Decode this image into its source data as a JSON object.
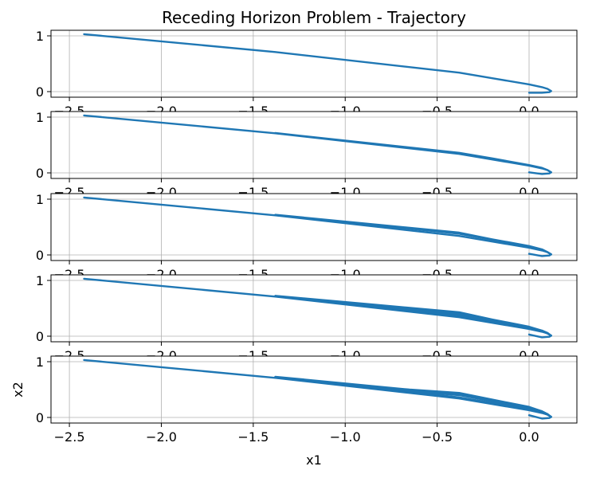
{
  "figure": {
    "title": "Receding Horizon Problem - Trajectory"
  },
  "chart_data": {
    "type": "line",
    "title": "Receding Horizon Problem - Trajectory",
    "xlabel": "x1",
    "ylabel": "x2",
    "xlim": [
      -2.6,
      0.26
    ],
    "ylim": [
      -0.1,
      1.1
    ],
    "xticks": [
      -2.5,
      -2.0,
      -1.5,
      -1.0,
      -0.5,
      0.0
    ],
    "xtick_labels": [
      "−2.5",
      "−2.0",
      "−1.5",
      "−1.0",
      "−0.5",
      "0.0"
    ],
    "yticks": [
      0,
      1
    ],
    "ytick_labels": [
      "0",
      "1"
    ],
    "grid": true,
    "line_color": "#1f77b4",
    "subplots": [
      {
        "series": [
          {
            "x": [
              -2.42,
              -1.38,
              -0.38,
              -0.2,
              0.0,
              0.07,
              0.1,
              0.12,
              0.11,
              0.07,
              0.0
            ],
            "y": [
              1.03,
              0.71,
              0.34,
              0.24,
              0.13,
              0.08,
              0.05,
              0.01,
              -0.01,
              -0.02,
              -0.02
            ]
          }
        ]
      },
      {
        "series": [
          {
            "x": [
              -2.42,
              -1.38,
              -0.38,
              -0.2,
              0.0,
              0.07,
              0.1,
              0.12,
              0.11,
              0.07,
              0.0
            ],
            "y": [
              1.03,
              0.71,
              0.34,
              0.24,
              0.13,
              0.08,
              0.05,
              0.01,
              -0.01,
              -0.02,
              0.01
            ]
          },
          {
            "x": [
              -1.38,
              -0.38,
              -0.2,
              0.0,
              0.07,
              0.1,
              0.12
            ],
            "y": [
              0.715,
              0.36,
              0.26,
              0.14,
              0.09,
              0.05,
              0.01
            ]
          }
        ]
      },
      {
        "series": [
          {
            "x": [
              -2.42,
              -1.38,
              -0.38,
              -0.2,
              0.0,
              0.07,
              0.1,
              0.12,
              0.11,
              0.07,
              0.0
            ],
            "y": [
              1.03,
              0.71,
              0.34,
              0.24,
              0.13,
              0.08,
              0.05,
              0.01,
              -0.01,
              -0.02,
              0.02
            ]
          },
          {
            "x": [
              -1.38,
              -0.38,
              -0.2,
              0.0,
              0.07,
              0.1,
              0.12
            ],
            "y": [
              0.715,
              0.38,
              0.27,
              0.15,
              0.09,
              0.05,
              0.01
            ]
          },
          {
            "x": [
              -1.38,
              -0.38,
              -0.2,
              0.0,
              0.07,
              0.1,
              0.12
            ],
            "y": [
              0.72,
              0.4,
              0.28,
              0.16,
              0.1,
              0.05,
              0.01
            ]
          }
        ]
      },
      {
        "series": [
          {
            "x": [
              -2.42,
              -1.38,
              -0.38,
              -0.2,
              0.0,
              0.07,
              0.1,
              0.12,
              0.11,
              0.07,
              0.0
            ],
            "y": [
              1.03,
              0.71,
              0.34,
              0.24,
              0.13,
              0.08,
              0.05,
              0.01,
              -0.01,
              -0.02,
              0.03
            ]
          },
          {
            "x": [
              -1.38,
              -0.38,
              -0.2,
              0.0,
              0.07,
              0.1,
              0.12
            ],
            "y": [
              0.715,
              0.37,
              0.26,
              0.15,
              0.09,
              0.05,
              0.01
            ]
          },
          {
            "x": [
              -1.38,
              -0.38,
              -0.2,
              0.0,
              0.07,
              0.1,
              0.12
            ],
            "y": [
              0.72,
              0.4,
              0.28,
              0.16,
              0.1,
              0.05,
              0.01
            ]
          },
          {
            "x": [
              -1.38,
              -0.38,
              -0.2,
              0.0,
              0.07,
              0.1,
              0.12
            ],
            "y": [
              0.725,
              0.43,
              0.3,
              0.17,
              0.1,
              0.06,
              0.01
            ]
          }
        ]
      },
      {
        "series": [
          {
            "x": [
              -2.42,
              -1.38,
              -0.38,
              -0.2,
              0.0,
              0.07,
              0.1,
              0.12,
              0.11,
              0.07,
              0.0
            ],
            "y": [
              1.03,
              0.71,
              0.34,
              0.24,
              0.13,
              0.08,
              0.05,
              0.01,
              -0.01,
              -0.02,
              0.04
            ]
          },
          {
            "x": [
              -1.38,
              -0.38,
              -0.2,
              0.0,
              0.07,
              0.1,
              0.12
            ],
            "y": [
              0.715,
              0.36,
              0.26,
              0.15,
              0.09,
              0.05,
              0.01
            ]
          },
          {
            "x": [
              -1.38,
              -0.65,
              -0.38,
              -0.2,
              0.0,
              0.07,
              0.1,
              0.12
            ],
            "y": [
              0.72,
              0.47,
              0.4,
              0.29,
              0.17,
              0.1,
              0.06,
              0.01
            ]
          },
          {
            "x": [
              -1.38,
              -0.65,
              -0.38,
              -0.2,
              0.0,
              0.07,
              0.1,
              0.12
            ],
            "y": [
              0.725,
              0.48,
              0.43,
              0.31,
              0.18,
              0.11,
              0.06,
              0.01
            ]
          },
          {
            "x": [
              -1.38,
              -0.65,
              -0.38,
              -0.2,
              0.0,
              0.07,
              0.1,
              0.12
            ],
            "y": [
              0.73,
              0.5,
              0.44,
              0.32,
              0.19,
              0.11,
              0.06,
              0.01
            ]
          }
        ]
      }
    ]
  }
}
